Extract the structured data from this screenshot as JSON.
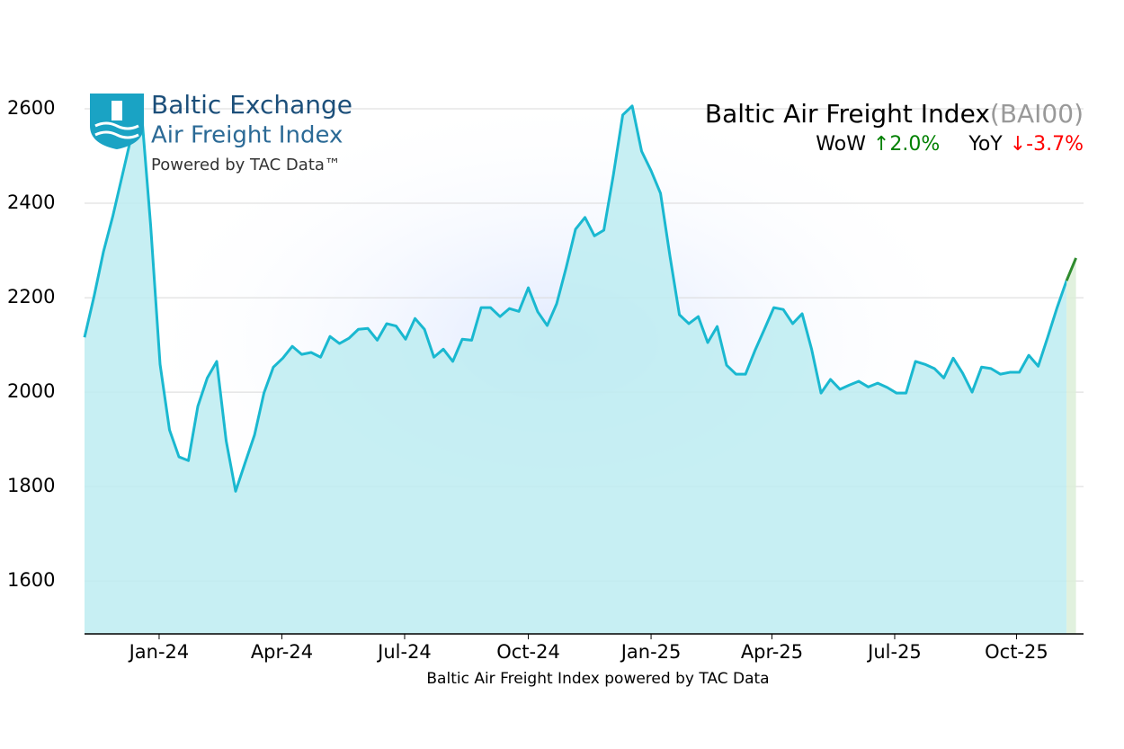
{
  "chart_data": {
    "type": "line",
    "title": "Baltic Air Freight Index",
    "title_code": "(BAI00)",
    "x_label": "Baltic Air Freight Index powered by TAC Data",
    "stats": [
      {
        "label": "WoW",
        "change": "↑2.0%",
        "color": "#008000"
      },
      {
        "label": "YoY",
        "change": "↓-3.7%",
        "color": "#ff0000"
      }
    ],
    "logo": {
      "name": "Baltic Exchange",
      "product": "Air Freight Index",
      "tagline": "Powered by TAC Data™"
    },
    "series": [
      {
        "color": "#1ab8d0",
        "fill": "#bdecf1",
        "values": [
          2116,
          2202,
          2297,
          2373,
          2459,
          2545,
          2602,
          2354,
          2059,
          1920,
          1863,
          1855,
          1970,
          2030,
          2065,
          1897,
          1790,
          1850,
          1909,
          1998,
          2053,
          2072,
          2097,
          2080,
          2084,
          2074,
          2118,
          2103,
          2114,
          2133,
          2135,
          2110,
          2145,
          2140,
          2112,
          2156,
          2133,
          2074,
          2091,
          2065,
          2112,
          2110,
          2179,
          2179,
          2160,
          2177,
          2171,
          2221,
          2170,
          2141,
          2187,
          2263,
          2345,
          2370,
          2331,
          2343,
          2459,
          2587,
          2606,
          2510,
          2469,
          2421,
          2288,
          2164,
          2145,
          2160,
          2105,
          2139,
          2057,
          2038,
          2038,
          2088,
          2133,
          2179,
          2175,
          2145,
          2166,
          2091,
          1998,
          2027,
          2006,
          2015,
          2023,
          2011,
          2019,
          2010,
          1998,
          1998,
          2065,
          2059,
          2050,
          2030,
          2072,
          2040,
          2000,
          2053,
          2050,
          2038,
          2042,
          2042,
          2078,
          2055,
          2116,
          2179,
          2236,
          null
        ]
      },
      {
        "color": "#2e8b2e",
        "fill": "#dcefd8",
        "values": [
          null,
          null,
          null,
          null,
          null,
          null,
          null,
          null,
          null,
          null,
          null,
          null,
          null,
          null,
          null,
          null,
          null,
          null,
          null,
          null,
          null,
          null,
          null,
          null,
          null,
          null,
          null,
          null,
          null,
          null,
          null,
          null,
          null,
          null,
          null,
          null,
          null,
          null,
          null,
          null,
          null,
          null,
          null,
          null,
          null,
          null,
          null,
          null,
          null,
          null,
          null,
          null,
          null,
          null,
          null,
          null,
          null,
          null,
          null,
          null,
          null,
          null,
          null,
          null,
          null,
          null,
          null,
          null,
          null,
          null,
          null,
          null,
          null,
          null,
          null,
          null,
          null,
          null,
          null,
          null,
          null,
          null,
          null,
          null,
          null,
          null,
          null,
          null,
          null,
          null,
          null,
          null,
          null,
          null,
          null,
          null,
          null,
          null,
          null,
          null,
          null,
          null,
          null,
          null,
          2236,
          2284
        ]
      }
    ],
    "xlim": [
      0,
      105.8
    ],
    "xticks": [
      {
        "value": 7.9,
        "label": "Jan-24"
      },
      {
        "value": 20.9,
        "label": "Apr-24"
      },
      {
        "value": 33.9,
        "label": "Jul-24"
      },
      {
        "value": 47.0,
        "label": "Oct-24"
      },
      {
        "value": 60.0,
        "label": "Jan-25"
      },
      {
        "value": 72.8,
        "label": "Apr-25"
      },
      {
        "value": 85.8,
        "label": "Jul-25"
      },
      {
        "value": 98.7,
        "label": "Oct-25"
      }
    ],
    "ylim": [
      1488,
      2640
    ],
    "yticks": [
      1600,
      1800,
      2000,
      2200,
      2400,
      2600
    ],
    "grid": true
  }
}
